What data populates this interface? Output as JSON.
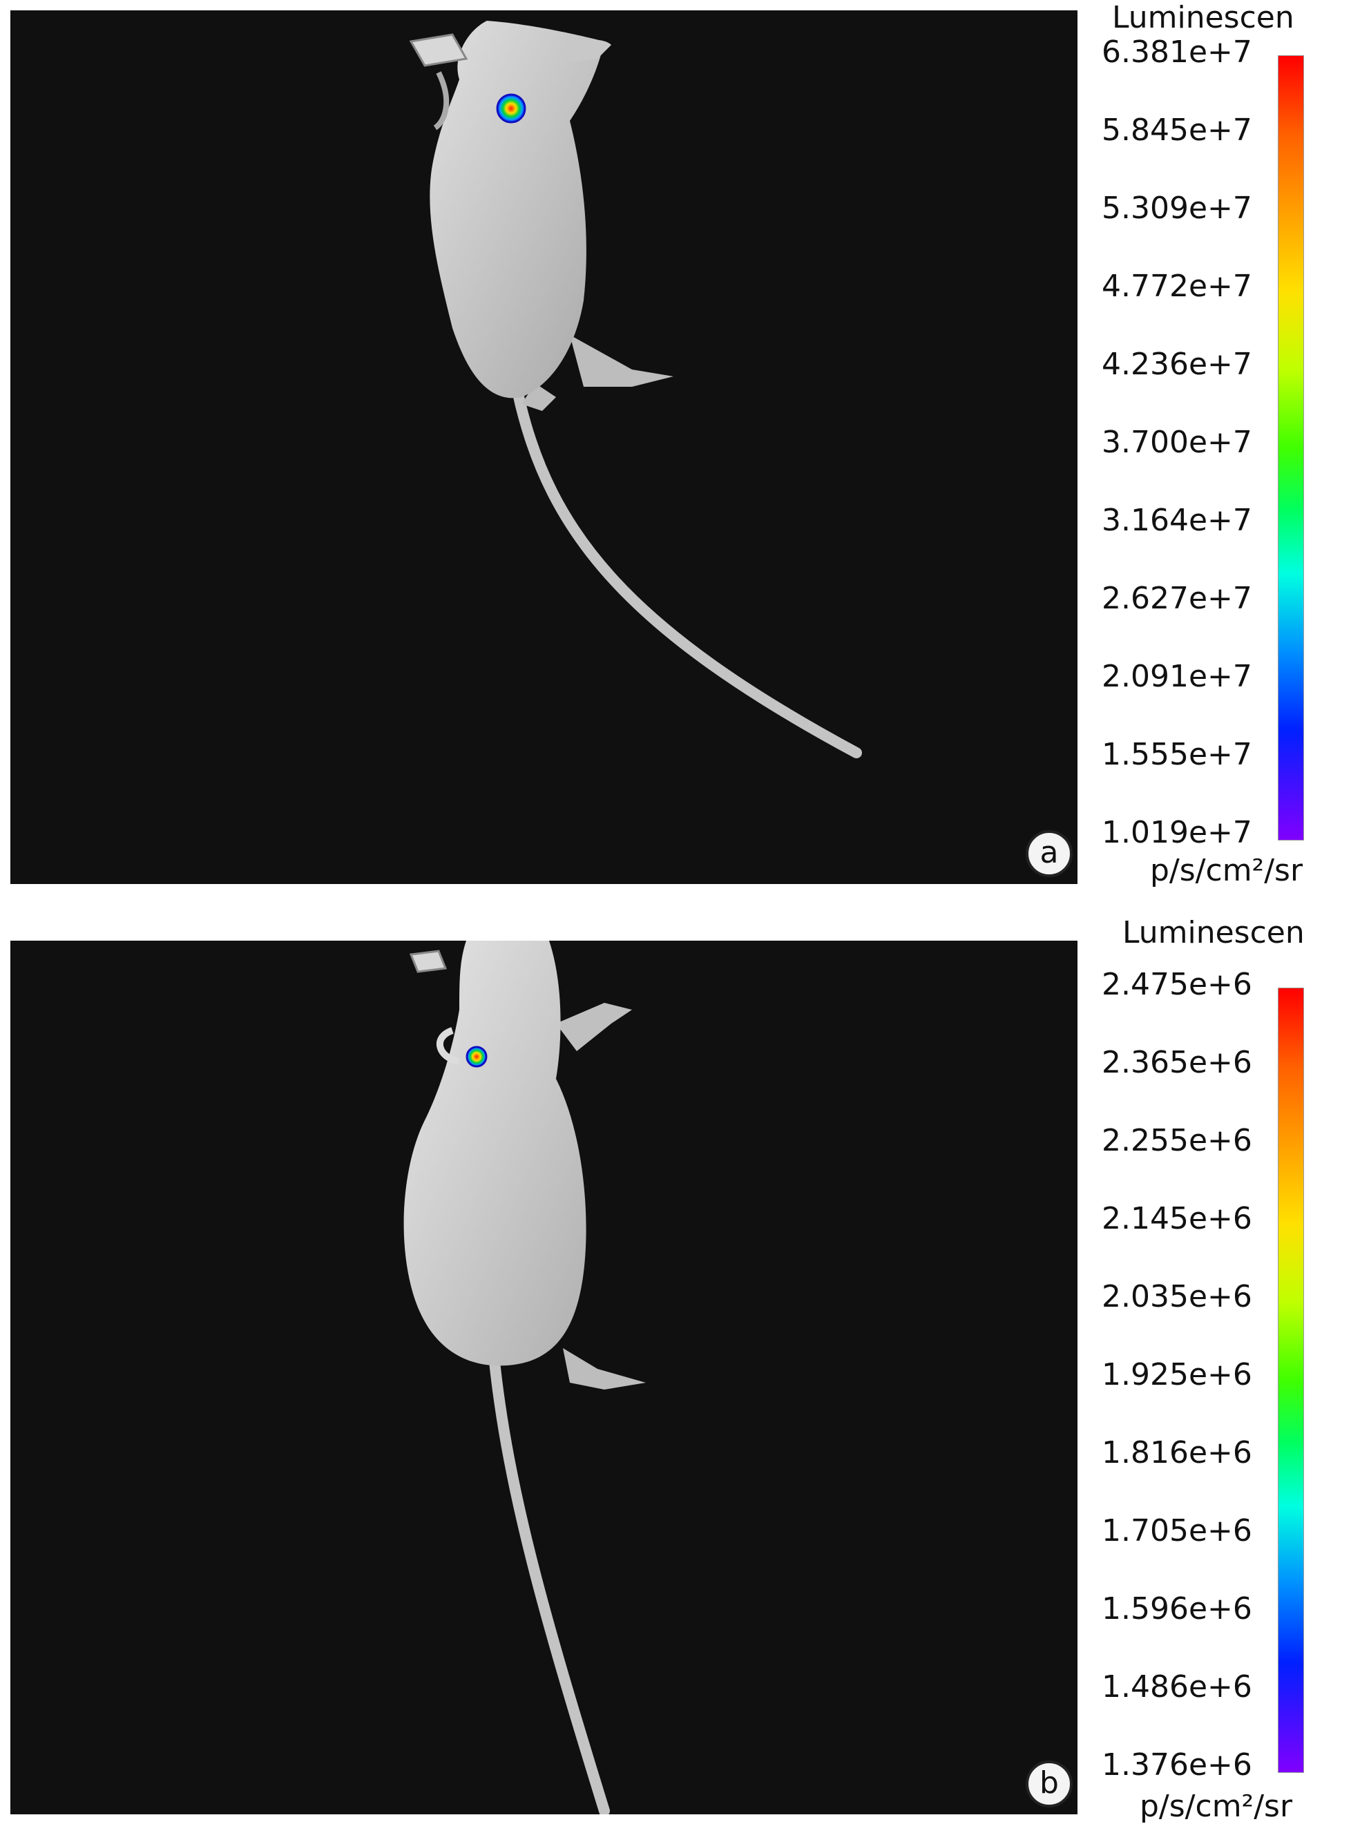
{
  "panels": [
    {
      "letter": "a",
      "scale_title": "Luminescen",
      "unit": "p/s/cm²/sr",
      "ticks": [
        "6.381e+7",
        "5.845e+7",
        "5.309e+7",
        "4.772e+7",
        "4.236e+7",
        "3.700e+7",
        "3.164e+7",
        "2.627e+7",
        "2.091e+7",
        "1.555e+7",
        "1.019e+7"
      ]
    },
    {
      "letter": "b",
      "scale_title": "Luminescen",
      "unit": "p/s/cm²/sr",
      "ticks": [
        "2.475e+6",
        "2.365e+6",
        "2.255e+6",
        "2.145e+6",
        "2.035e+6",
        "1.925e+6",
        "1.816e+6",
        "1.705e+6",
        "1.596e+6",
        "1.486e+6",
        "1.376e+6"
      ]
    }
  ],
  "colors": {
    "background": "#101010",
    "mouse": "#cfcfcf",
    "scale_top": "#ff0000",
    "scale_bottom": "#8000ff"
  }
}
